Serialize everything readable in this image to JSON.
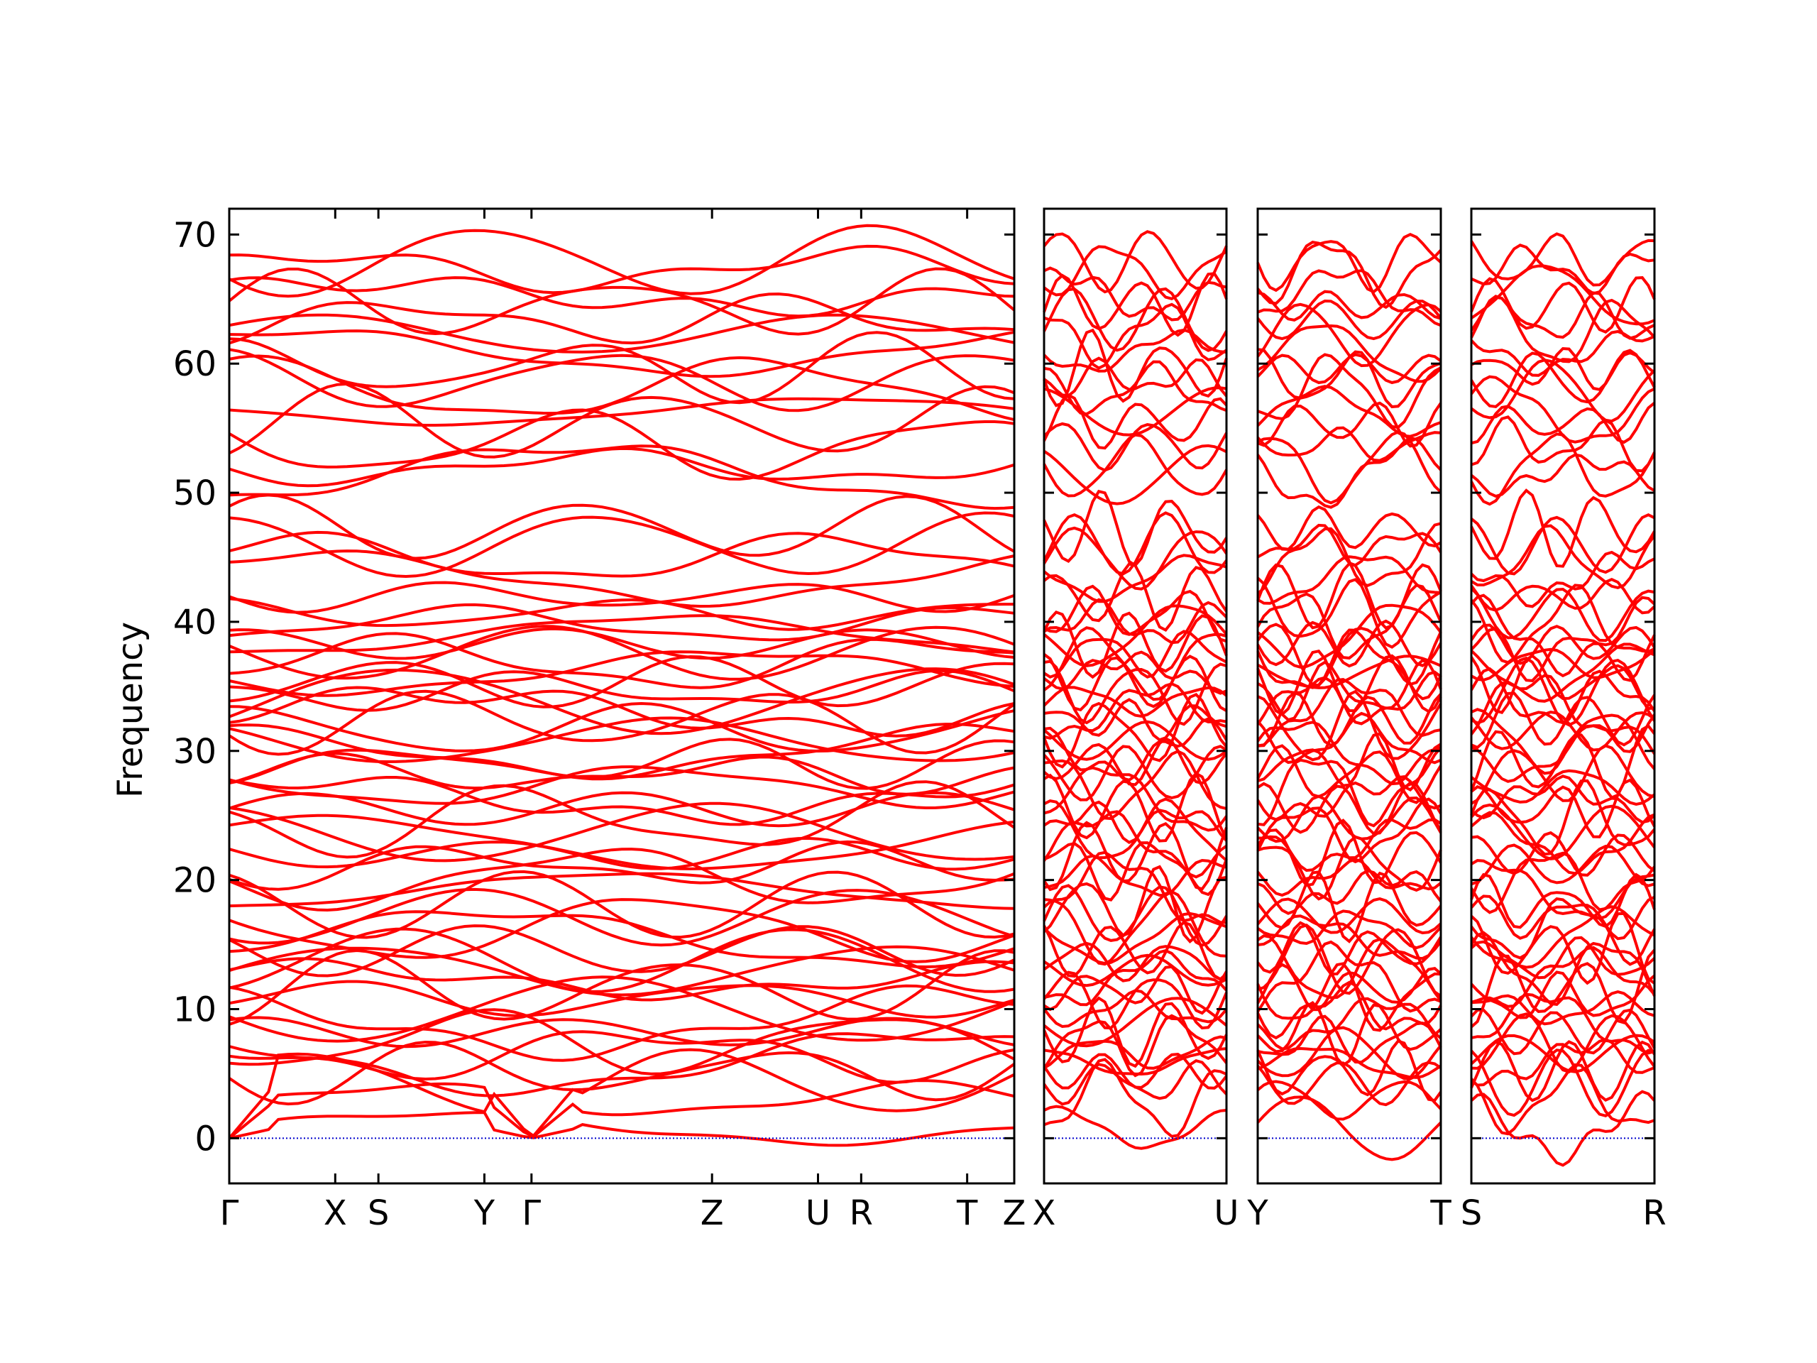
{
  "chart_data": {
    "type": "line",
    "ylabel": "Frequency",
    "ylim": [
      -3.5,
      72
    ],
    "yticks": [
      0,
      10,
      20,
      30,
      40,
      50,
      60,
      70
    ],
    "grid": false,
    "colors": {
      "bands": "#ff0000",
      "zero_line": "#0000cc",
      "frame": "#000000"
    },
    "panels": [
      {
        "name": "panel-1",
        "path_labels": [
          "Γ",
          "X",
          "S",
          "Y",
          "Γ",
          "Z",
          "U",
          "R",
          "T",
          "Z"
        ],
        "path_positions": [
          0,
          0.135,
          0.19,
          0.325,
          0.385,
          0.615,
          0.75,
          0.805,
          0.94,
          1.0
        ]
      },
      {
        "name": "panel-2",
        "path_labels": [
          "X",
          "U"
        ],
        "path_positions": [
          0,
          1
        ]
      },
      {
        "name": "panel-3",
        "path_labels": [
          "Y",
          "T"
        ],
        "path_positions": [
          0,
          1
        ]
      },
      {
        "name": "panel-4",
        "path_labels": [
          "S",
          "R"
        ],
        "path_positions": [
          0,
          1
        ]
      }
    ],
    "band_levels": [
      0.8,
      3.0,
      4.3,
      5.2,
      5.9,
      6.6,
      7.5,
      8.2,
      9.0,
      10.0,
      10.8,
      11.6,
      12.3,
      13.0,
      13.8,
      14.6,
      15.5,
      16.3,
      17.2,
      18.1,
      19.2,
      20.2,
      21.1,
      22.0,
      22.9,
      23.7,
      24.6,
      25.5,
      26.3,
      27.3,
      28.2,
      29.1,
      30.0,
      30.8,
      31.6,
      32.4,
      33.1,
      33.9,
      34.6,
      35.3,
      36.1,
      36.8,
      37.6,
      38.3,
      39.0,
      39.8,
      40.6,
      42.0,
      43.4,
      44.9,
      46.0,
      47.2,
      51.4,
      52.0,
      53.7,
      55.4,
      56.3,
      58.0,
      58.8,
      59.6,
      60.9,
      62.3,
      63.4,
      64.5,
      65.3,
      67.3,
      68.0
    ]
  }
}
